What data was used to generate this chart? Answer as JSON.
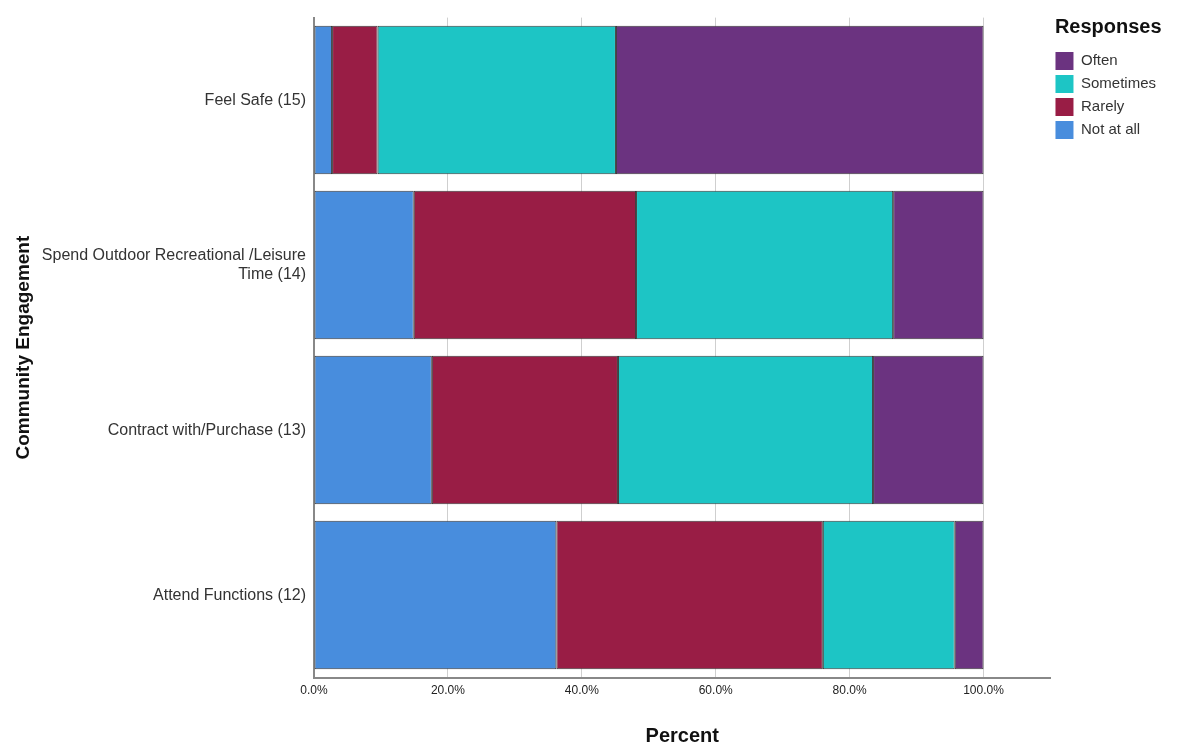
{
  "chart_data": {
    "type": "bar",
    "orientation": "horizontal",
    "stacked": true,
    "xlabel": "Percent",
    "ylabel": "Community Engagement",
    "legend_title": "Responses",
    "legend": "top right",
    "grid": "x",
    "categories": [
      "Feel Safe (15)",
      "Spend Outdoor Recreational /Leisure Time (14)",
      "Contract with/Purchase (13)",
      "Attend Functions (12)"
    ],
    "xlim": [
      0,
      110
    ],
    "xticks": [
      {
        "value": 0,
        "label": "0.0%"
      },
      {
        "value": 20,
        "label": "20.0%"
      },
      {
        "value": 40,
        "label": "40.0%"
      },
      {
        "value": 60,
        "label": "60.0%"
      },
      {
        "value": 80,
        "label": "80.0%"
      },
      {
        "value": 100,
        "label": "100.0%"
      }
    ],
    "series": [
      {
        "name": "Not at all",
        "color": "#488ddd",
        "values": [
          2.7,
          14.9,
          17.6,
          36.2
        ]
      },
      {
        "name": "Rarely",
        "color": "#991d45",
        "values": [
          6.8,
          33.2,
          27.8,
          39.8
        ]
      },
      {
        "name": "Sometimes",
        "color": "#1dc5c5",
        "values": [
          35.6,
          38.4,
          38.1,
          19.7
        ]
      },
      {
        "name": "Often",
        "color": "#6b3380",
        "values": [
          54.9,
          13.5,
          16.5,
          4.3
        ]
      }
    ]
  }
}
